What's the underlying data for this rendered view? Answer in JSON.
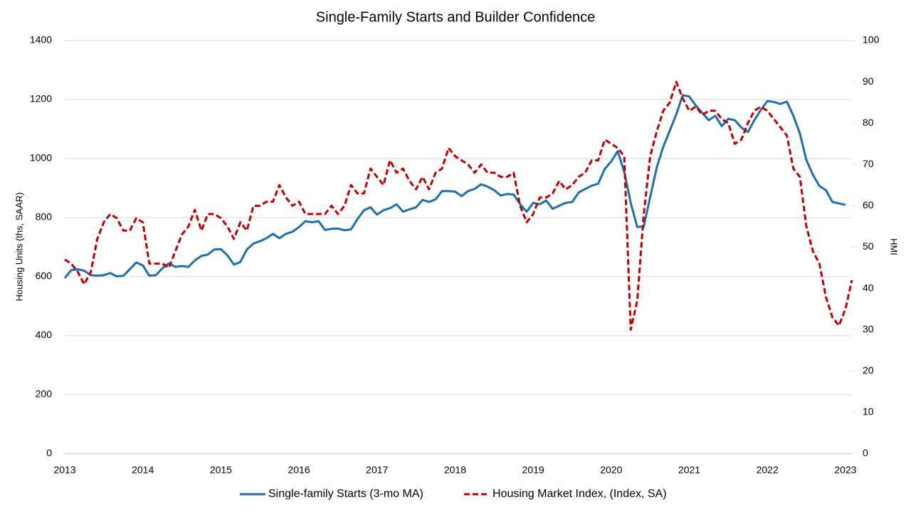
{
  "chart_data": {
    "type": "line",
    "title": "Single-Family Starts and Builder Confidence",
    "ylabel": "Housing Units (ths, SAAR)",
    "y2label": "HMI",
    "categories": [
      "2013",
      null,
      null,
      null,
      null,
      null,
      null,
      null,
      null,
      null,
      null,
      null,
      "2014",
      null,
      null,
      null,
      null,
      null,
      null,
      null,
      null,
      null,
      null,
      null,
      "2015",
      null,
      null,
      null,
      null,
      null,
      null,
      null,
      null,
      null,
      null,
      null,
      "2016",
      null,
      null,
      null,
      null,
      null,
      null,
      null,
      null,
      null,
      null,
      null,
      "2017",
      null,
      null,
      null,
      null,
      null,
      null,
      null,
      null,
      null,
      null,
      null,
      "2018",
      null,
      null,
      null,
      null,
      null,
      null,
      null,
      null,
      null,
      null,
      null,
      "2019",
      null,
      null,
      null,
      null,
      null,
      null,
      null,
      null,
      null,
      null,
      null,
      "2020",
      null,
      null,
      null,
      null,
      null,
      null,
      null,
      null,
      null,
      null,
      null,
      "2021",
      null,
      null,
      null,
      null,
      null,
      null,
      null,
      null,
      null,
      null,
      null,
      "2022",
      null,
      null,
      null,
      null,
      null,
      null,
      null,
      null,
      null,
      null,
      null,
      "2023",
      null
    ],
    "ylim": [
      0,
      1400
    ],
    "yticks": [
      0,
      200,
      400,
      600,
      800,
      1000,
      1200,
      1400
    ],
    "y2lim": [
      0,
      100
    ],
    "y2ticks": [
      0,
      10,
      20,
      30,
      40,
      50,
      60,
      70,
      80,
      90,
      100
    ],
    "grid": true,
    "legend": "bottom",
    "series": [
      {
        "name": "Single-family Starts (3-mo MA)",
        "color": "#1f6fad",
        "dash": false,
        "values": [
          595,
          622,
          625,
          620,
          605,
          603,
          605,
          612,
          601,
          603,
          625,
          648,
          638,
          603,
          605,
          628,
          645,
          633,
          636,
          633,
          655,
          670,
          675,
          692,
          693,
          672,
          641,
          650,
          692,
          712,
          720,
          730,
          745,
          730,
          745,
          752,
          768,
          788,
          784,
          788,
          758,
          762,
          763,
          757,
          760,
          795,
          825,
          835,
          810,
          825,
          832,
          845,
          820,
          828,
          835,
          860,
          853,
          862,
          890,
          890,
          888,
          873,
          890,
          897,
          913,
          905,
          893,
          875,
          880,
          878,
          845,
          820,
          850,
          845,
          858,
          830,
          840,
          850,
          853,
          885,
          897,
          908,
          915,
          965,
          990,
          1025,
          955,
          850,
          768,
          770,
          870,
          970,
          1040,
          1095,
          1150,
          1215,
          1210,
          1180,
          1155,
          1130,
          1145,
          1110,
          1135,
          1130,
          1105,
          1090,
          1130,
          1165,
          1195,
          1192,
          1185,
          1193,
          1145,
          1085,
          995,
          945,
          907,
          893,
          853,
          848,
          843,
          null
        ]
      },
      {
        "name": "Housing Market Index, (Index, SA)",
        "color": "#c00000",
        "dash": true,
        "axis": "y2",
        "values": [
          47,
          46,
          44,
          41,
          44,
          52,
          56,
          58,
          57,
          54,
          54,
          57,
          56,
          46,
          46,
          46,
          45,
          49,
          53,
          55,
          59,
          54,
          58,
          58,
          57,
          55,
          52,
          56,
          54,
          60,
          60,
          61,
          61,
          65,
          62,
          60,
          61,
          58,
          58,
          58,
          58,
          60,
          58,
          60,
          65,
          63,
          63,
          69,
          67,
          65,
          71,
          68,
          69,
          66,
          64,
          67,
          64,
          68,
          69,
          74,
          72,
          71,
          70,
          68,
          70,
          68,
          68,
          67,
          67,
          68,
          60,
          56,
          58,
          62,
          62,
          63,
          66,
          64,
          65,
          67,
          68,
          71,
          71,
          76,
          75,
          74,
          72,
          30,
          37,
          58,
          72,
          78,
          83,
          85,
          90,
          86,
          83,
          84,
          82,
          83,
          83,
          81,
          80,
          75,
          76,
          80,
          83,
          84,
          83,
          81,
          79,
          77,
          69,
          67,
          55,
          49,
          46,
          38,
          33,
          31,
          35,
          42
        ]
      }
    ]
  }
}
